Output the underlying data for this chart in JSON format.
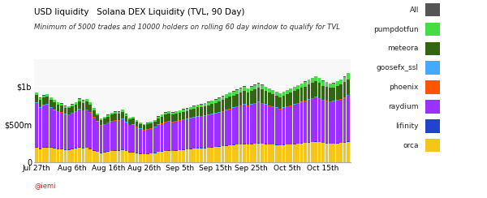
{
  "title_line1": "USD liquidity   Solana DEX Liquidity (TVL, 90 Day)",
  "title_line2": "Minimum of 5000 trades and 10000 holders on rolling 60 day window to qualify for TVL",
  "x_labels": [
    "Jul 27th",
    "Aug 6th",
    "Aug 16th",
    "Aug 26th",
    "Sep 5th",
    "Sep 15th",
    "Sep 25th",
    "Oct 5th",
    "Oct 15th"
  ],
  "x_tick_positions": [
    0,
    10,
    20,
    30,
    40,
    50,
    60,
    70,
    80
  ],
  "n_bars": 88,
  "colors": {
    "orca": "#F5C518",
    "lifinity": "#2244CC",
    "raydium": "#9B30FF",
    "phoenix": "#FF5500",
    "goosefx_ssl": "#44AAFF",
    "meteora": "#336611",
    "pumpdotfun": "#44DD44",
    "All": "#555555"
  },
  "legend_order": [
    "All",
    "pumpdotfun",
    "meteora",
    "goosefx_ssl",
    "phoenix",
    "raydium",
    "lifinity",
    "orca"
  ],
  "ytick_labels": [
    "0",
    "$500m",
    "$1b"
  ],
  "ylim_max": 1350,
  "background_color": "#FFFFFF",
  "plot_bg_color": "#F8F8F8",
  "watermark": "@iemi",
  "orca_base": [
    195,
    175,
    195,
    195,
    195,
    185,
    175,
    175,
    165,
    165,
    175,
    185,
    195,
    185,
    190,
    175,
    155,
    135,
    120,
    130,
    140,
    150,
    155,
    155,
    165,
    145,
    130,
    130,
    120,
    110,
    105,
    110,
    115,
    120,
    135,
    140,
    150,
    155,
    150,
    155,
    160,
    165,
    170,
    175,
    180,
    185,
    185,
    185,
    190,
    195,
    200,
    205,
    210,
    215,
    220,
    225,
    230,
    235,
    240,
    235,
    240,
    245,
    250,
    245,
    240,
    235,
    230,
    225,
    220,
    225,
    230,
    235,
    240,
    245,
    250,
    255,
    260,
    265,
    270,
    265,
    255,
    250,
    245,
    245,
    250,
    255,
    260,
    270
  ],
  "lifinity_vals": [
    8,
    7,
    8,
    8,
    7,
    7,
    6,
    6,
    6,
    6,
    6,
    6,
    7,
    7,
    7,
    7,
    6,
    5,
    5,
    5,
    5,
    5,
    5,
    5,
    5,
    5,
    5,
    5,
    5,
    5,
    5,
    5,
    5,
    5,
    5,
    5,
    5,
    5,
    5,
    5,
    5,
    5,
    5,
    5,
    5,
    5,
    5,
    5,
    5,
    5,
    5,
    5,
    5,
    5,
    5,
    5,
    5,
    5,
    5,
    5,
    5,
    5,
    5,
    5,
    5,
    5,
    5,
    5,
    5,
    5,
    5,
    5,
    5,
    5,
    5,
    5,
    5,
    5,
    5,
    5,
    5,
    5,
    5,
    5,
    5,
    5,
    5,
    5
  ],
  "raydium_vals": [
    570,
    530,
    540,
    550,
    510,
    490,
    480,
    470,
    455,
    450,
    460,
    470,
    490,
    485,
    490,
    470,
    430,
    390,
    355,
    360,
    370,
    380,
    385,
    385,
    395,
    370,
    350,
    355,
    335,
    320,
    310,
    315,
    320,
    330,
    350,
    360,
    370,
    375,
    370,
    375,
    380,
    385,
    390,
    395,
    400,
    405,
    410,
    415,
    420,
    425,
    430,
    440,
    450,
    460,
    470,
    480,
    490,
    500,
    510,
    500,
    510,
    520,
    530,
    520,
    510,
    500,
    490,
    480,
    470,
    480,
    490,
    500,
    510,
    520,
    530,
    540,
    555,
    565,
    575,
    565,
    550,
    545,
    540,
    545,
    555,
    565,
    580,
    600
  ],
  "phoenix_vals": [
    5,
    5,
    5,
    5,
    5,
    5,
    5,
    5,
    5,
    5,
    5,
    5,
    5,
    5,
    5,
    5,
    5,
    5,
    5,
    5,
    5,
    5,
    5,
    5,
    5,
    5,
    5,
    5,
    5,
    5,
    5,
    5,
    5,
    5,
    5,
    5,
    5,
    5,
    5,
    5,
    5,
    5,
    5,
    5,
    5,
    5,
    5,
    5,
    5,
    5,
    5,
    5,
    5,
    5,
    5,
    5,
    5,
    5,
    5,
    5,
    5,
    5,
    5,
    5,
    5,
    5,
    5,
    5,
    5,
    5,
    5,
    5,
    5,
    5,
    5,
    5,
    5,
    5,
    5,
    5,
    5,
    5,
    5,
    5,
    5,
    5,
    5,
    5
  ],
  "goosefx_vals": [
    5,
    5,
    5,
    5,
    5,
    5,
    5,
    5,
    5,
    5,
    5,
    5,
    5,
    5,
    5,
    5,
    5,
    5,
    5,
    5,
    5,
    5,
    5,
    5,
    5,
    5,
    5,
    5,
    5,
    5,
    5,
    5,
    5,
    5,
    5,
    5,
    5,
    5,
    5,
    5,
    5,
    5,
    5,
    5,
    5,
    5,
    5,
    5,
    5,
    5,
    5,
    5,
    5,
    5,
    5,
    5,
    5,
    5,
    5,
    5,
    5,
    5,
    5,
    5,
    5,
    5,
    5,
    5,
    5,
    5,
    5,
    5,
    5,
    5,
    5,
    5,
    5,
    5,
    5,
    5,
    5,
    5,
    5,
    5,
    5,
    5,
    5,
    5
  ],
  "meteora_vals": [
    100,
    95,
    95,
    100,
    100,
    95,
    90,
    85,
    80,
    80,
    85,
    90,
    100,
    95,
    100,
    95,
    85,
    75,
    65,
    70,
    75,
    80,
    85,
    85,
    90,
    80,
    70,
    75,
    65,
    60,
    55,
    60,
    65,
    70,
    80,
    85,
    90,
    95,
    90,
    95,
    95,
    100,
    100,
    105,
    110,
    115,
    115,
    120,
    125,
    130,
    135,
    140,
    145,
    150,
    155,
    155,
    160,
    165,
    170,
    165,
    170,
    175,
    180,
    175,
    170,
    165,
    160,
    155,
    150,
    155,
    160,
    165,
    170,
    175,
    180,
    185,
    190,
    195,
    200,
    195,
    185,
    180,
    175,
    175,
    180,
    185,
    195,
    205
  ],
  "pumpdotfun_vals": [
    30,
    28,
    28,
    30,
    30,
    28,
    26,
    24,
    22,
    22,
    24,
    26,
    30,
    28,
    30,
    28,
    24,
    20,
    16,
    18,
    20,
    22,
    24,
    24,
    26,
    22,
    18,
    20,
    16,
    14,
    12,
    14,
    16,
    18,
    22,
    24,
    26,
    28,
    26,
    28,
    28,
    30,
    30,
    32,
    34,
    36,
    36,
    38,
    40,
    42,
    44,
    46,
    48,
    50,
    52,
    52,
    54,
    56,
    58,
    54,
    56,
    58,
    60,
    58,
    54,
    52,
    50,
    48,
    46,
    48,
    50,
    52,
    54,
    56,
    58,
    60,
    63,
    66,
    69,
    66,
    62,
    60,
    58,
    58,
    62,
    66,
    70,
    76
  ],
  "all_vals": [
    5,
    5,
    5,
    5,
    5,
    5,
    5,
    5,
    5,
    5,
    5,
    5,
    5,
    5,
    5,
    5,
    5,
    5,
    5,
    5,
    5,
    5,
    5,
    5,
    5,
    5,
    5,
    5,
    5,
    5,
    5,
    5,
    5,
    5,
    5,
    5,
    5,
    5,
    5,
    5,
    5,
    5,
    5,
    5,
    5,
    5,
    5,
    5,
    5,
    5,
    5,
    5,
    5,
    5,
    5,
    5,
    5,
    5,
    5,
    5,
    5,
    5,
    5,
    5,
    5,
    5,
    5,
    5,
    5,
    5,
    5,
    5,
    5,
    5,
    5,
    5,
    5,
    5,
    5,
    5,
    5,
    5,
    5,
    5,
    5,
    5,
    5,
    5
  ]
}
